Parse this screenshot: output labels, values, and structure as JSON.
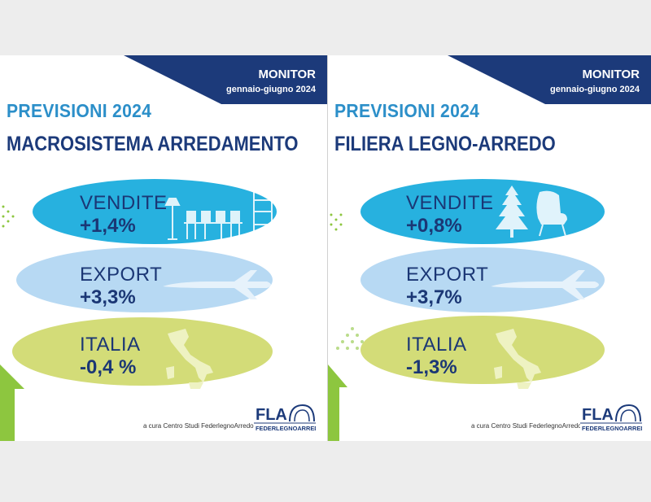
{
  "panels": [
    {
      "monitor": "MONITOR",
      "period": "gennaio-giugno 2024",
      "title": "PREVISIONI 2024",
      "subtitle": "MACROSISTEMA ARREDAMENTO",
      "items": [
        {
          "label": "VENDITE",
          "value": "+1,4%"
        },
        {
          "label": "EXPORT",
          "value": "+3,3%"
        },
        {
          "label": "ITALIA",
          "value": "-0,4 %"
        }
      ],
      "credit": "a cura Centro Studi FederlegnoArredo",
      "logo": {
        "mark": "FLA",
        "name": "FEDERLEGNOARREDO"
      }
    },
    {
      "monitor": "MONITOR",
      "period": "gennaio-giugno 2024",
      "title": "PREVISIONI 2024",
      "subtitle": "FILIERA LEGNO-ARREDO",
      "items": [
        {
          "label": "VENDITE",
          "value": "+0,8%"
        },
        {
          "label": "EXPORT",
          "value": "+3,7%"
        },
        {
          "label": "ITALIA",
          "value": "-1,3%"
        }
      ],
      "credit": "a cura Centro Studi FederlegnoArredo",
      "logo": {
        "mark": "FLA",
        "name": "FEDERLEGNOARREDO"
      }
    }
  ],
  "colors": {
    "navy": "#1b3775",
    "title_blue": "#2c8fc9",
    "vendite": "#27b1df",
    "export": "#b7d9f3",
    "italia": "#d3dc78",
    "green_arrow": "#8dc63f"
  },
  "icons": [
    "furniture-icon",
    "airplane-icon",
    "italy-map-icon",
    "fir-tree-icon",
    "armchair-icon",
    "up-arrow-icon"
  ]
}
